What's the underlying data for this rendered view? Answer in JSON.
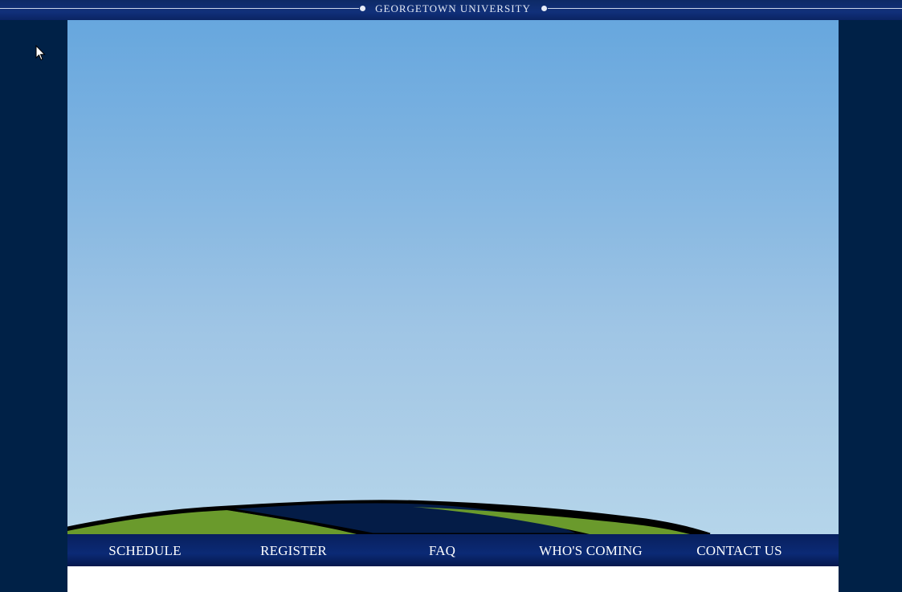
{
  "header": {
    "institution_name": "GEORGETOWN UNIVERSITY"
  },
  "hero": {
    "sky_color_top": "#67a7de",
    "sky_color_bottom": "#b5d5ea",
    "hill_green": "#6a9a2c",
    "hill_navy": "#041c47"
  },
  "nav": {
    "items": [
      {
        "label": "SCHEDULE"
      },
      {
        "label": "REGISTER"
      },
      {
        "label": "FAQ"
      },
      {
        "label": "WHO'S COMING"
      },
      {
        "label": "CONTACT US"
      }
    ]
  },
  "colors": {
    "page_background": "#002147",
    "nav_background": "#0b2a75",
    "content_background": "#ffffff"
  }
}
